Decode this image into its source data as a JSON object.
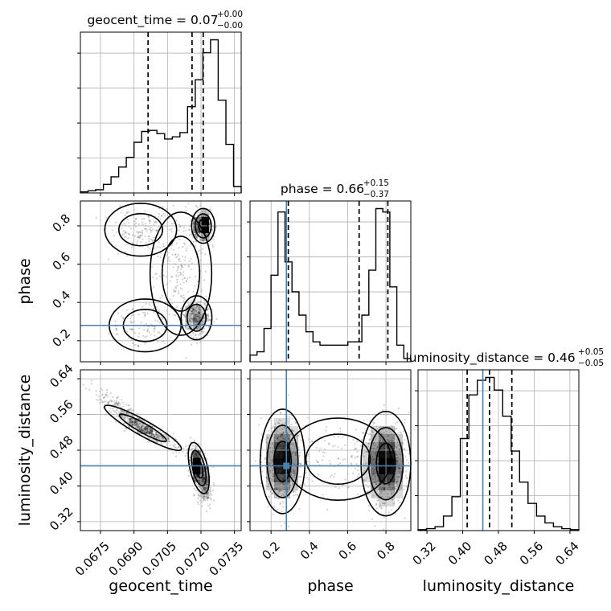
{
  "chart_data": {
    "type": "corner",
    "truths": {
      "geocent_time": null,
      "phase": 0.28,
      "luminosity_distance": 0.445
    },
    "truth_color": "#4682b4",
    "params": [
      {
        "name": "geocent_time",
        "label": "geocent_time",
        "range": [
          0.0666,
          0.0738
        ],
        "ticks": [
          "0.0675",
          "0.0690",
          "0.0705",
          "0.0720",
          "0.0735"
        ],
        "tick_values": [
          0.0675,
          0.069,
          0.0705,
          0.072,
          0.0735
        ],
        "title": {
          "text": "geocent_time = 0.07",
          "sup": "+0.00",
          "sub": "−0.00"
        },
        "quantiles": [
          0.06963,
          0.0716,
          0.0721
        ],
        "hist": [
          1,
          2,
          3,
          8,
          15,
          24,
          33,
          47,
          57,
          58,
          55,
          50,
          52,
          56,
          80,
          105,
          130,
          142,
          86,
          45,
          6
        ]
      },
      {
        "name": "phase",
        "label": "phase",
        "range": [
          0.09,
          0.93
        ],
        "ticks": [
          "0.2",
          "0.4",
          "0.6",
          "0.8"
        ],
        "tick_values": [
          0.2,
          0.4,
          0.6,
          0.8
        ],
        "title": {
          "text": "phase = 0.66",
          "sup": "+0.15",
          "sub": "−0.37"
        },
        "quantiles": [
          0.29,
          0.66,
          0.81
        ],
        "hist": [
          4,
          6,
          20,
          52,
          90,
          60,
          42,
          28,
          18,
          12,
          10,
          10,
          10,
          10,
          12,
          12,
          28,
          55,
          92,
          90,
          45,
          10,
          2
        ]
      },
      {
        "name": "luminosity_distance",
        "label": "luminosity_distance",
        "range": [
          0.3,
          0.66
        ],
        "ticks": [
          "0.32",
          "0.40",
          "0.48",
          "0.56",
          "0.64"
        ],
        "tick_values": [
          0.32,
          0.4,
          0.48,
          0.56,
          0.64
        ],
        "title": {
          "text": "luminosity_distance = 0.46",
          "sup": "+0.05",
          "sub": "−0.05"
        },
        "quantiles": [
          0.41,
          0.46,
          0.51
        ],
        "hist": [
          1,
          2,
          4,
          15,
          35,
          95,
          140,
          155,
          158,
          145,
          118,
          82,
          50,
          28,
          15,
          8,
          4,
          2,
          1
        ]
      }
    ],
    "panels_2d": [
      {
        "x": "geocent_time",
        "y": "phase",
        "modes": [
          {
            "x": 0.0721,
            "y": 0.8,
            "sx": 0.0002,
            "sy": 0.035,
            "w": 0.4
          },
          {
            "x": 0.0718,
            "y": 0.32,
            "sx": 0.0003,
            "sy": 0.05,
            "w": 0.24
          },
          {
            "x": 0.0693,
            "y": 0.78,
            "sx": 0.0007,
            "sy": 0.06,
            "w": 0.12
          },
          {
            "x": 0.0695,
            "y": 0.28,
            "sx": 0.0007,
            "sy": 0.06,
            "w": 0.1
          },
          {
            "x": 0.0711,
            "y": 0.55,
            "sx": 0.0006,
            "sy": 0.14,
            "w": 0.14
          }
        ]
      },
      {
        "x": "geocent_time",
        "y": "luminosity_distance",
        "modes": [
          {
            "x": 0.0694,
            "y": 0.53,
            "sx": 0.00075,
            "sy": 0.022,
            "w": 0.3,
            "rho": -0.92
          },
          {
            "x": 0.0719,
            "y": 0.44,
            "sx": 0.00018,
            "sy": 0.022,
            "w": 0.55,
            "rho": -0.5
          },
          {
            "x": 0.068,
            "y": 0.59,
            "sx": 0.0005,
            "sy": 0.018,
            "w": 0.08,
            "rho": -0.8
          },
          {
            "x": 0.0722,
            "y": 0.385,
            "sx": 0.0002,
            "sy": 0.015,
            "w": 0.07,
            "rho": 0.0
          }
        ]
      },
      {
        "x": "phase",
        "y": "luminosity_distance",
        "modes": [
          {
            "x": 0.26,
            "y": 0.455,
            "sx": 0.045,
            "sy": 0.045,
            "w": 0.42
          },
          {
            "x": 0.8,
            "y": 0.45,
            "sx": 0.05,
            "sy": 0.045,
            "w": 0.48
          },
          {
            "x": 0.55,
            "y": 0.46,
            "sx": 0.12,
            "sy": 0.04,
            "w": 0.1
          }
        ]
      }
    ]
  }
}
